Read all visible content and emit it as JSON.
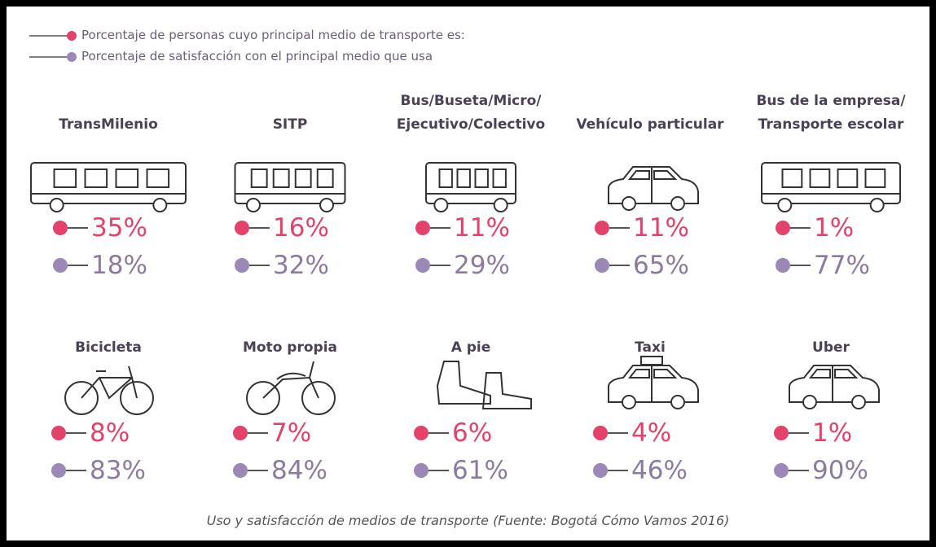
{
  "legend": [
    "Porcentaje de personas cuyo principal medio de transporte es:",
    "Porcentaje de satisfacción con el principal medio que usa"
  ],
  "items": [
    {
      "name": [
        "TransMilenio"
      ],
      "use": "35%",
      "satisfaction": "18%"
    },
    {
      "name": [
        "SITP"
      ],
      "use": "16%",
      "satisfaction": "32%"
    },
    {
      "name": [
        "Bus/Buseta/Micro/",
        "Ejecutivo/Colectivo"
      ],
      "use": "11%",
      "satisfaction": "29%"
    },
    {
      "name": [
        "Vehículo particular"
      ],
      "use": "11%",
      "satisfaction": "65%"
    },
    {
      "name": [
        "Bus de la empresa/",
        "Transporte escolar"
      ],
      "use": "1%",
      "satisfaction": "77%"
    },
    {
      "name": [
        "Bicicleta"
      ],
      "use": "8%",
      "satisfaction": "83%"
    },
    {
      "name": [
        "Moto propia"
      ],
      "use": "7%",
      "satisfaction": "84%"
    },
    {
      "name": [
        "A pie"
      ],
      "use": "6%",
      "satisfaction": "61%"
    },
    {
      "name": [
        "Taxi"
      ],
      "use": "4%",
      "satisfaction": "46%"
    },
    {
      "name": [
        "Uber"
      ],
      "use": "1%",
      "satisfaction": "90%"
    }
  ],
  "caption": "Uso y satisfacción de medios de transporte (Fuente: Bogotá Cómo Vamos 2016)"
}
